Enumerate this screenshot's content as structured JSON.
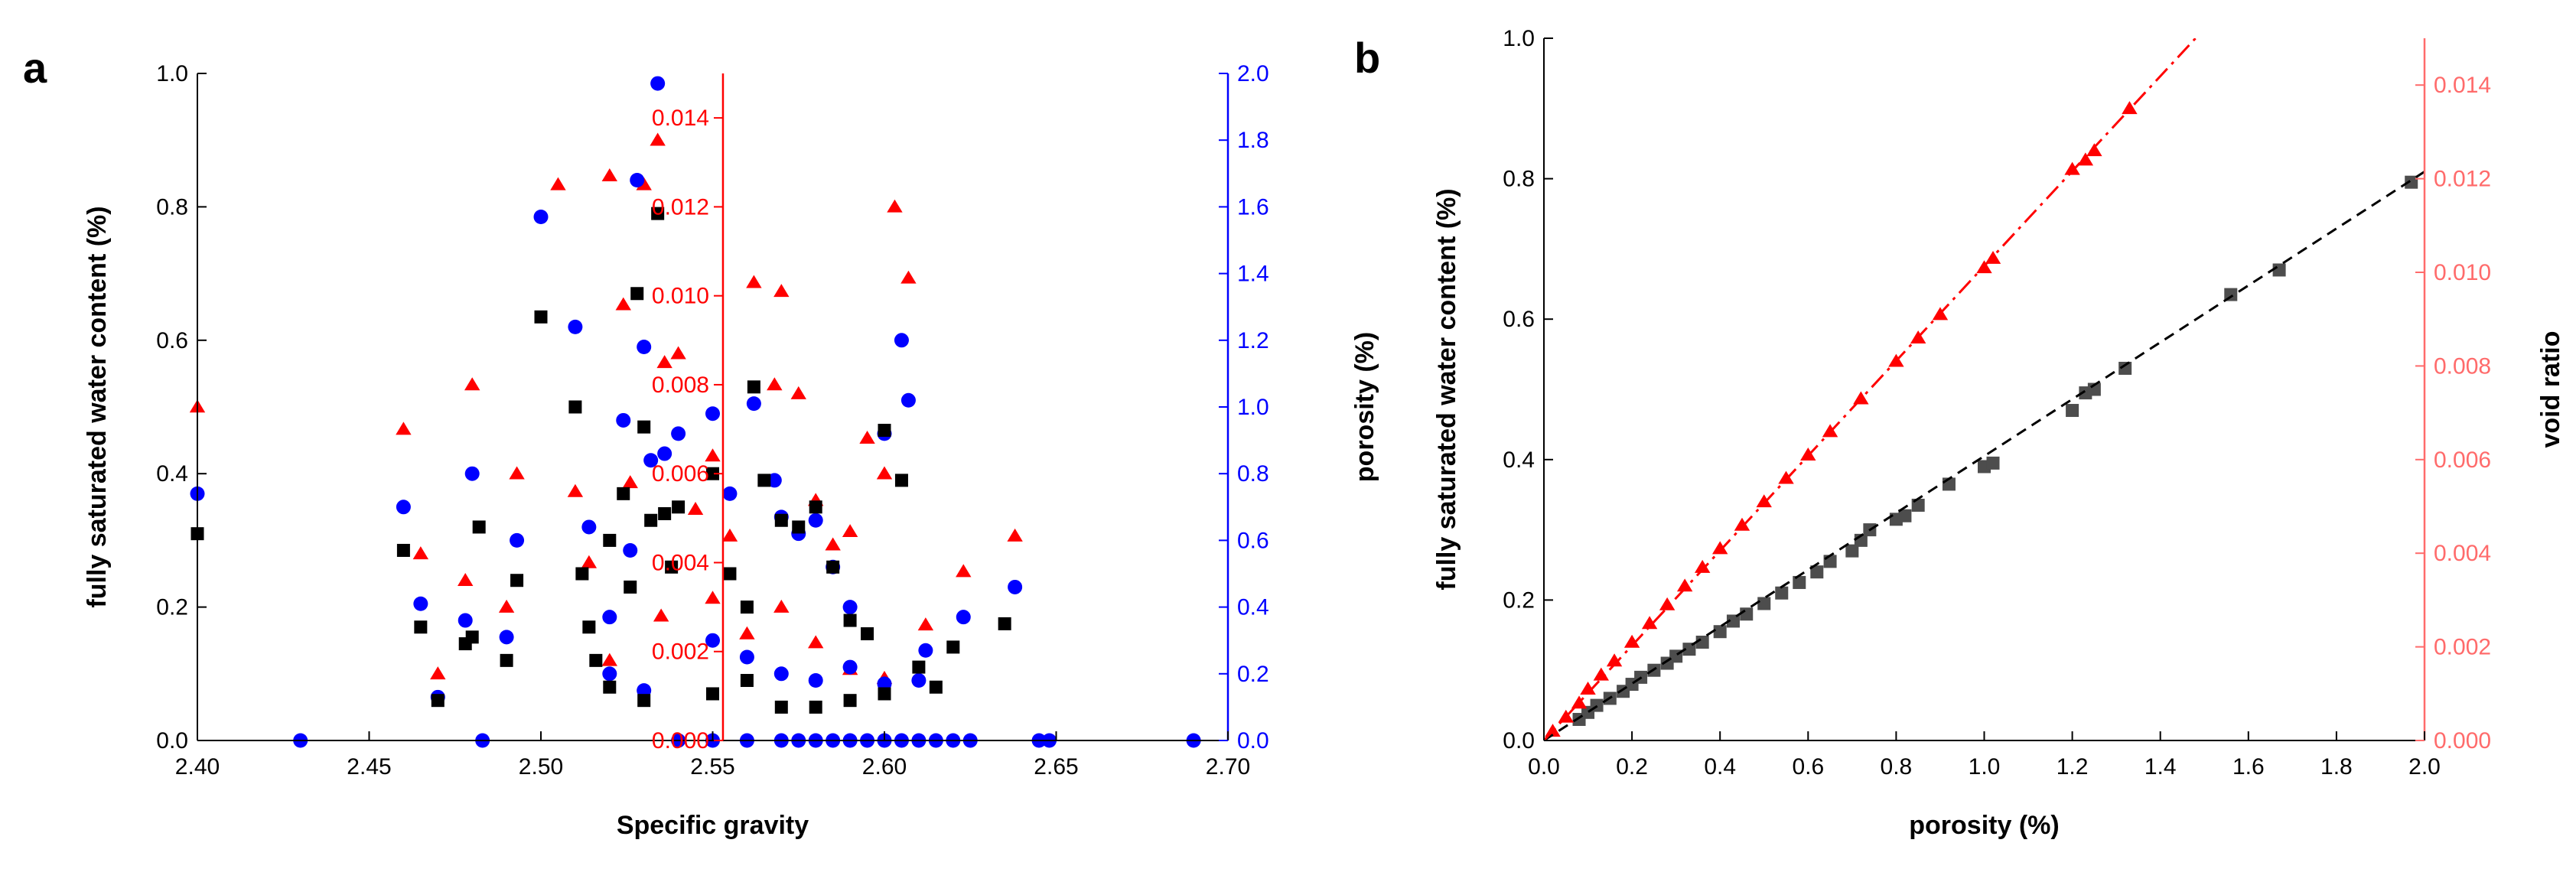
{
  "colors": {
    "black": "#000000",
    "red": "#ff0000",
    "blue": "#0000ff",
    "gray": "#4d4d4d",
    "pink": "#ff6b6b"
  },
  "chart_data": [
    {
      "panel": "a",
      "type": "scatter",
      "xlabel": "Specific gravity",
      "ylabel_left": "fully saturated water content (%)",
      "ylabel_right": "porosity (%)",
      "xlim": [
        2.4,
        2.7
      ],
      "ylim_left": [
        0.0,
        1.0
      ],
      "ylim_right": [
        0.0,
        2.0
      ],
      "ylim_inner": [
        0.0,
        0.015
      ],
      "x_ticks": [
        "2.40",
        "2.45",
        "2.50",
        "2.55",
        "2.60",
        "2.65",
        "2.70"
      ],
      "y_ticks_left": [
        "0.0",
        "0.2",
        "0.4",
        "0.6",
        "0.8",
        "1.0"
      ],
      "y_ticks_right": [
        "0.0",
        "0.2",
        "0.4",
        "0.6",
        "0.8",
        "1.0",
        "1.2",
        "1.4",
        "1.6",
        "1.8",
        "2.0"
      ],
      "y_ticks_inner": [
        "0.000",
        "0.002",
        "0.004",
        "0.006",
        "0.008",
        "0.010",
        "0.012",
        "0.014"
      ],
      "inner_axis_x": 2.553,
      "series": [
        {
          "marker": "square",
          "color": "#000000",
          "axis": "left",
          "points": [
            [
              2.4,
              0.31
            ],
            [
              2.46,
              0.285
            ],
            [
              2.465,
              0.17
            ],
            [
              2.47,
              0.06
            ],
            [
              2.478,
              0.145
            ],
            [
              2.48,
              0.155
            ],
            [
              2.482,
              0.32
            ],
            [
              2.49,
              0.12
            ],
            [
              2.493,
              0.24
            ],
            [
              2.5,
              0.635
            ],
            [
              2.51,
              0.5
            ],
            [
              2.512,
              0.25
            ],
            [
              2.514,
              0.17
            ],
            [
              2.516,
              0.12
            ],
            [
              2.52,
              0.3
            ],
            [
              2.524,
              0.37
            ],
            [
              2.526,
              0.23
            ],
            [
              2.528,
              0.67
            ],
            [
              2.53,
              0.47
            ],
            [
              2.532,
              0.33
            ],
            [
              2.534,
              0.79
            ],
            [
              2.536,
              0.34
            ],
            [
              2.538,
              0.26
            ],
            [
              2.54,
              0.35
            ],
            [
              2.55,
              0.4
            ],
            [
              2.555,
              0.25
            ],
            [
              2.56,
              0.2
            ],
            [
              2.562,
              0.53
            ],
            [
              2.565,
              0.39
            ],
            [
              2.57,
              0.33
            ],
            [
              2.575,
              0.32
            ],
            [
              2.58,
              0.35
            ],
            [
              2.585,
              0.26
            ],
            [
              2.59,
              0.18
            ],
            [
              2.595,
              0.16
            ],
            [
              2.6,
              0.465
            ],
            [
              2.605,
              0.39
            ],
            [
              2.61,
              0.11
            ],
            [
              2.615,
              0.08
            ],
            [
              2.62,
              0.14
            ],
            [
              2.635,
              0.175
            ],
            [
              2.52,
              0.08
            ],
            [
              2.53,
              0.06
            ],
            [
              2.55,
              0.07
            ],
            [
              2.56,
              0.09
            ],
            [
              2.57,
              0.05
            ],
            [
              2.58,
              0.05
            ],
            [
              2.59,
              0.06
            ],
            [
              2.6,
              0.07
            ]
          ]
        },
        {
          "marker": "triangle",
          "color": "#ff0000",
          "axis": "inner",
          "points": [
            [
              2.4,
              0.0075
            ],
            [
              2.46,
              0.007
            ],
            [
              2.465,
              0.0042
            ],
            [
              2.47,
              0.0015
            ],
            [
              2.478,
              0.0036
            ],
            [
              2.48,
              0.008
            ],
            [
              2.49,
              0.003
            ],
            [
              2.493,
              0.006
            ],
            [
              2.505,
              0.0125
            ],
            [
              2.51,
              0.0056
            ],
            [
              2.514,
              0.004
            ],
            [
              2.52,
              0.0127
            ],
            [
              2.524,
              0.0098
            ],
            [
              2.526,
              0.0058
            ],
            [
              2.53,
              0.0125
            ],
            [
              2.534,
              0.0135
            ],
            [
              2.536,
              0.0085
            ],
            [
              2.54,
              0.0087
            ],
            [
              2.545,
              0.0052
            ],
            [
              2.55,
              0.0064
            ],
            [
              2.555,
              0.0046
            ],
            [
              2.562,
              0.0103
            ],
            [
              2.568,
              0.008
            ],
            [
              2.57,
              0.0101
            ],
            [
              2.575,
              0.0078
            ],
            [
              2.58,
              0.0054
            ],
            [
              2.585,
              0.0044
            ],
            [
              2.59,
              0.0047
            ],
            [
              2.595,
              0.0068
            ],
            [
              2.6,
              0.006
            ],
            [
              2.603,
              0.012
            ],
            [
              2.607,
              0.0104
            ],
            [
              2.612,
              0.0026
            ],
            [
              2.623,
              0.0038
            ],
            [
              2.638,
              0.0046
            ],
            [
              2.52,
              0.0018
            ],
            [
              2.535,
              0.0028
            ],
            [
              2.55,
              0.0032
            ],
            [
              2.56,
              0.0024
            ],
            [
              2.57,
              0.003
            ],
            [
              2.58,
              0.0022
            ],
            [
              2.59,
              0.0016
            ],
            [
              2.6,
              0.0014
            ]
          ]
        },
        {
          "marker": "circle",
          "color": "#0000ff",
          "axis": "right",
          "points": [
            [
              2.4,
              0.74
            ],
            [
              2.43,
              0.0
            ],
            [
              2.46,
              0.7
            ],
            [
              2.465,
              0.41
            ],
            [
              2.47,
              0.13
            ],
            [
              2.478,
              0.36
            ],
            [
              2.48,
              0.8
            ],
            [
              2.483,
              0.0
            ],
            [
              2.49,
              0.31
            ],
            [
              2.493,
              0.6
            ],
            [
              2.5,
              1.57
            ],
            [
              2.51,
              1.24
            ],
            [
              2.514,
              0.64
            ],
            [
              2.52,
              0.37
            ],
            [
              2.524,
              0.96
            ],
            [
              2.526,
              0.57
            ],
            [
              2.528,
              1.68
            ],
            [
              2.53,
              1.18
            ],
            [
              2.532,
              0.84
            ],
            [
              2.534,
              1.97
            ],
            [
              2.536,
              0.86
            ],
            [
              2.54,
              0.92
            ],
            [
              2.55,
              0.98
            ],
            [
              2.555,
              0.74
            ],
            [
              2.562,
              1.01
            ],
            [
              2.568,
              0.78
            ],
            [
              2.57,
              0.67
            ],
            [
              2.575,
              0.62
            ],
            [
              2.58,
              0.66
            ],
            [
              2.585,
              0.52
            ],
            [
              2.59,
              0.4
            ],
            [
              2.6,
              0.92
            ],
            [
              2.605,
              1.2
            ],
            [
              2.607,
              1.02
            ],
            [
              2.61,
              0.18
            ],
            [
              2.612,
              0.27
            ],
            [
              2.623,
              0.37
            ],
            [
              2.638,
              0.46
            ],
            [
              2.52,
              0.2
            ],
            [
              2.53,
              0.15
            ],
            [
              2.55,
              0.3
            ],
            [
              2.56,
              0.25
            ],
            [
              2.57,
              0.2
            ],
            [
              2.58,
              0.18
            ],
            [
              2.59,
              0.22
            ],
            [
              2.6,
              0.17
            ],
            [
              2.54,
              0.0
            ],
            [
              2.55,
              0.0
            ],
            [
              2.56,
              0.0
            ],
            [
              2.57,
              0.0
            ],
            [
              2.575,
              0.0
            ],
            [
              2.58,
              0.0
            ],
            [
              2.585,
              0.0
            ],
            [
              2.59,
              0.0
            ],
            [
              2.595,
              0.0
            ],
            [
              2.6,
              0.0
            ],
            [
              2.605,
              0.0
            ],
            [
              2.61,
              0.0
            ],
            [
              2.615,
              0.0
            ],
            [
              2.62,
              0.0
            ],
            [
              2.625,
              0.0
            ],
            [
              2.645,
              0.0
            ],
            [
              2.648,
              0.0
            ],
            [
              2.69,
              0.0
            ]
          ]
        }
      ]
    },
    {
      "panel": "b",
      "type": "scatter",
      "xlabel": "porosity (%)",
      "ylabel_left": "fully saturated water content (%)",
      "ylabel_right": "void ratio",
      "xlim": [
        0.0,
        2.0
      ],
      "ylim_left": [
        0.0,
        1.0
      ],
      "ylim_right": [
        0.0,
        0.015
      ],
      "x_ticks": [
        "0.0",
        "0.2",
        "0.4",
        "0.6",
        "0.8",
        "1.0",
        "1.2",
        "1.4",
        "1.6",
        "1.8",
        "2.0"
      ],
      "y_ticks_left": [
        "0.0",
        "0.2",
        "0.4",
        "0.6",
        "0.8",
        "1.0"
      ],
      "y_ticks_right": [
        "0.000",
        "0.002",
        "0.004",
        "0.006",
        "0.008",
        "0.010",
        "0.012",
        "0.014"
      ],
      "series": [
        {
          "marker": "square",
          "color": "#4d4d4d",
          "axis": "left",
          "points": [
            [
              0.08,
              0.03
            ],
            [
              0.1,
              0.04
            ],
            [
              0.12,
              0.05
            ],
            [
              0.15,
              0.06
            ],
            [
              0.18,
              0.07
            ],
            [
              0.2,
              0.08
            ],
            [
              0.22,
              0.09
            ],
            [
              0.25,
              0.1
            ],
            [
              0.28,
              0.11
            ],
            [
              0.3,
              0.12
            ],
            [
              0.33,
              0.13
            ],
            [
              0.36,
              0.14
            ],
            [
              0.4,
              0.155
            ],
            [
              0.43,
              0.17
            ],
            [
              0.46,
              0.18
            ],
            [
              0.5,
              0.195
            ],
            [
              0.54,
              0.21
            ],
            [
              0.58,
              0.225
            ],
            [
              0.62,
              0.24
            ],
            [
              0.65,
              0.255
            ],
            [
              0.7,
              0.27
            ],
            [
              0.72,
              0.285
            ],
            [
              0.74,
              0.3
            ],
            [
              0.8,
              0.315
            ],
            [
              0.82,
              0.32
            ],
            [
              0.85,
              0.335
            ],
            [
              0.92,
              0.365
            ],
            [
              1.0,
              0.39
            ],
            [
              1.02,
              0.395
            ],
            [
              1.2,
              0.47
            ],
            [
              1.23,
              0.495
            ],
            [
              1.25,
              0.5
            ],
            [
              1.32,
              0.53
            ],
            [
              1.56,
              0.635
            ],
            [
              1.67,
              0.67
            ],
            [
              1.97,
              0.795
            ]
          ]
        },
        {
          "marker": "triangle",
          "color": "#ff0000",
          "axis": "right",
          "points": [
            [
              0.02,
              0.0002
            ],
            [
              0.05,
              0.0005
            ],
            [
              0.08,
              0.0008
            ],
            [
              0.1,
              0.0011
            ],
            [
              0.13,
              0.0014
            ],
            [
              0.16,
              0.0017
            ],
            [
              0.2,
              0.0021
            ],
            [
              0.24,
              0.0025
            ],
            [
              0.28,
              0.0029
            ],
            [
              0.32,
              0.0033
            ],
            [
              0.36,
              0.0037
            ],
            [
              0.4,
              0.0041
            ],
            [
              0.45,
              0.0046
            ],
            [
              0.5,
              0.0051
            ],
            [
              0.55,
              0.0056
            ],
            [
              0.6,
              0.0061
            ],
            [
              0.65,
              0.0066
            ],
            [
              0.72,
              0.0073
            ],
            [
              0.8,
              0.0081
            ],
            [
              0.85,
              0.0086
            ],
            [
              0.9,
              0.0091
            ],
            [
              1.0,
              0.0101
            ],
            [
              1.02,
              0.0103
            ],
            [
              1.2,
              0.0122
            ],
            [
              1.23,
              0.0124
            ],
            [
              1.25,
              0.0126
            ],
            [
              1.33,
              0.0135
            ]
          ]
        }
      ],
      "fit_lines": [
        {
          "color": "#000000",
          "axis": "left",
          "style": "dashed",
          "from": [
            0.0,
            0.0
          ],
          "to": [
            2.0,
            0.81
          ]
        },
        {
          "color": "#ff0000",
          "axis": "right",
          "style": "dash-dot",
          "from": [
            0.0,
            0.0
          ],
          "to": [
            1.48,
            0.015
          ]
        }
      ]
    }
  ]
}
